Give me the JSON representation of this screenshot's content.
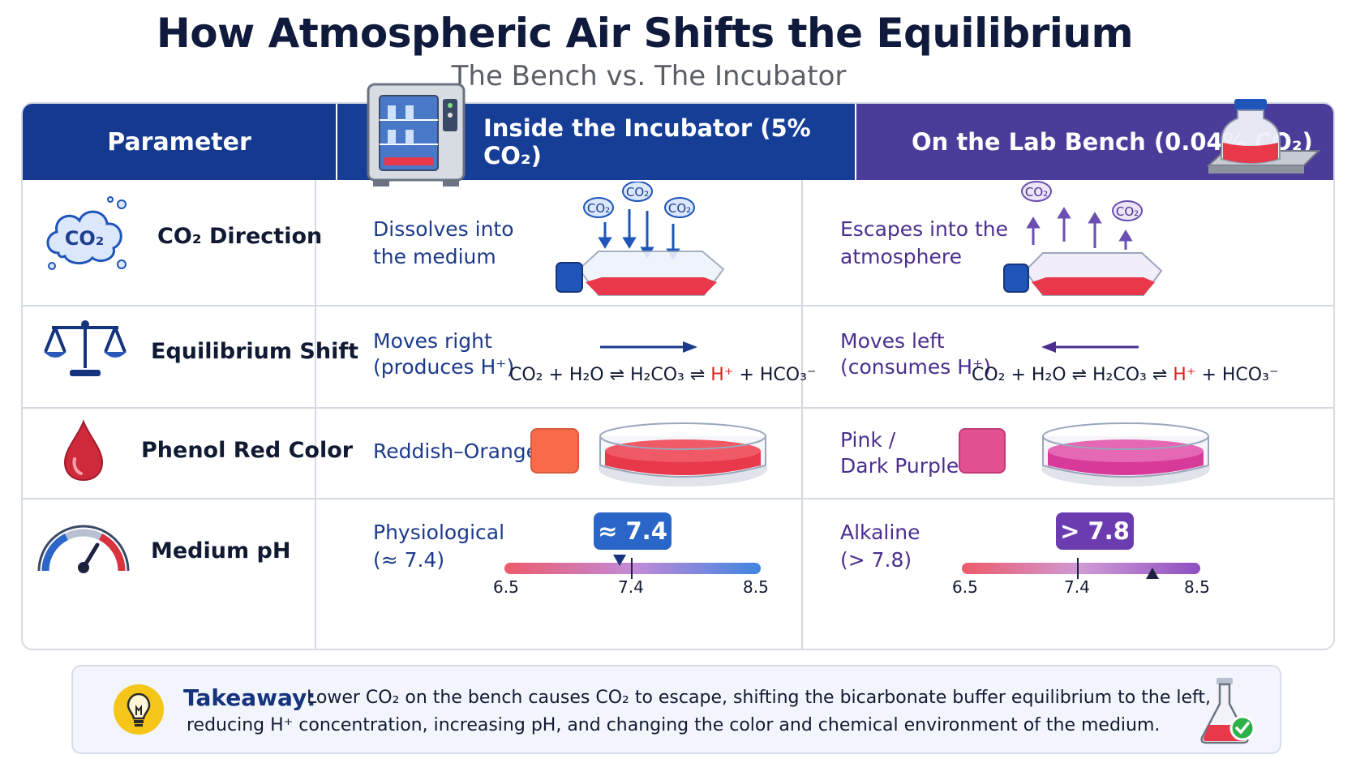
{
  "title": "How Atmospheric Air Shifts the Equilibrium",
  "subtitle": "The Bench vs. The Incubator",
  "header": {
    "parameter": "Parameter",
    "incubator": "Inside the Incubator (5% CO₂)",
    "bench": "On the Lab Bench (0.04% CO₂)"
  },
  "rows": {
    "co2": {
      "label": "CO₂ Direction",
      "icon_text": "CO₂",
      "incubator_text": "Dissolves into the medium",
      "bench_text": "Escapes into the atmosphere",
      "bubble": "CO₂"
    },
    "equilibrium": {
      "label": "Equilibrium Shift",
      "incubator_line1": "Moves right",
      "incubator_line2": "(produces H⁺)",
      "bench_line1": "Moves left",
      "bench_line2": "(consumes H⁺)",
      "eq_part1": "CO₂ + H₂O ⇌ H₂CO₃ ⇌ ",
      "eq_hplus": "H⁺",
      "eq_part2": " + HCO₃⁻"
    },
    "phenol": {
      "label": "Phenol Red Color",
      "incubator_text": "Reddish–Orange",
      "bench_line1": "Pink /",
      "bench_line2": "Dark Purple",
      "incubator_swatch": "#f76b4a",
      "bench_swatch": "#e2508f"
    },
    "ph": {
      "label": "Medium pH",
      "incubator_line1": "Physiological",
      "incubator_line2": "(≈ 7.4)",
      "bench_line1": "Alkaline",
      "bench_line2": "(> 7.8)",
      "incubator_badge": "≈ 7.4",
      "bench_badge": "> 7.8",
      "scale_min": "6.5",
      "scale_mid": "7.4",
      "scale_max": "8.5",
      "incubator_value": 7.4,
      "bench_value": 8.1
    }
  },
  "takeaway": {
    "title": "Takeaway:",
    "line1": "Lower CO₂ on the bench causes CO₂ to escape, shifting the bicarbonate buffer equilibrium to the left,",
    "line2": "reducing H⁺ concentration, increasing pH, and changing the color and chemical environment of the medium."
  },
  "colors": {
    "header_blue": "#14398f",
    "header_purple": "#4a3d9a",
    "incubator_text": "#1b3a8a",
    "bench_text": "#4b2f8f",
    "medium_red": "#e8384a",
    "medium_pink": "#d83a9a"
  },
  "icons": [
    "co2-cloud-icon",
    "balance-scale-icon",
    "blood-drop-icon",
    "gauge-icon",
    "incubator-icon",
    "bottle-on-plate-icon",
    "lightbulb-icon",
    "flask-check-icon"
  ]
}
